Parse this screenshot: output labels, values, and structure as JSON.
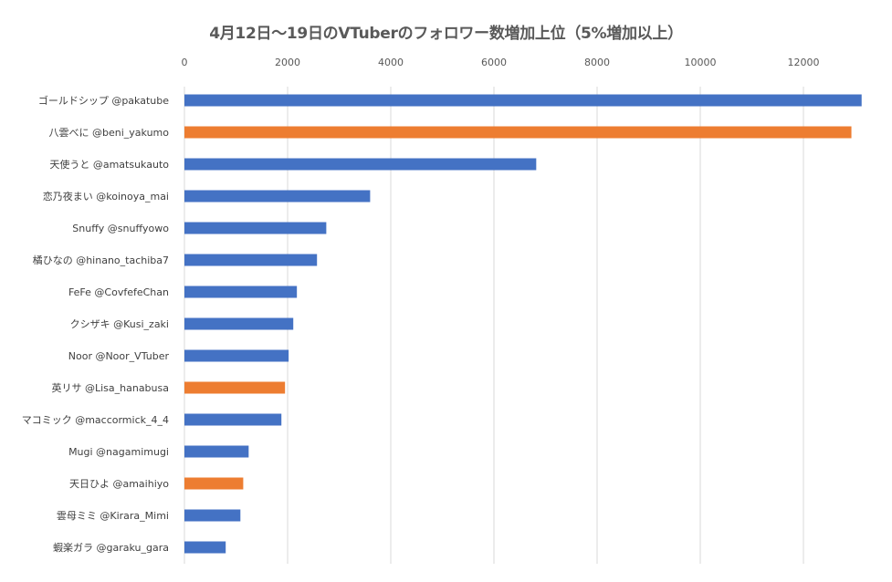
{
  "chart_data": {
    "type": "bar",
    "orientation": "horizontal",
    "title": "4月12日〜19日のVTuberのフォロワー数増加上位（5%増加以上）",
    "xlabel": "",
    "ylabel": "",
    "xlim": [
      0,
      13150
    ],
    "x_ticks": [
      0,
      2000,
      4000,
      6000,
      8000,
      10000,
      12000
    ],
    "x_tick_labels": [
      "0",
      "2000",
      "4000",
      "6000",
      "8000",
      "10000",
      "12000"
    ],
    "x_axis_position": "top",
    "grid": true,
    "legend": "none",
    "colors": {
      "blue": "#4472c4",
      "orange": "#ed7d31",
      "grid": "#d9d9d9",
      "text": "#595959"
    },
    "categories": [
      "ゴールドシップ @pakatube",
      "八雲べに @beni_yakumo",
      "天使うと @amatsukauto",
      "恋乃夜まい @koinoya_mai",
      "Snuffy @snuffyowo",
      "橘ひなの @hinano_tachiba7",
      "FeFe @CovfefeChan",
      "クシザキ @Kusi_zaki",
      "Noor @Noor_VTuber",
      "英リサ @Lisa_hanabusa",
      "マコミック @maccormick_4_4",
      "Mugi @nagamimugi",
      "天日ひよ @amaihiyo",
      "雲母ミミ @Kirara_Mimi",
      "蝦楽ガラ @garaku_gara"
    ],
    "values": [
      13128,
      12930,
      6820,
      3600,
      2750,
      2570,
      2180,
      2110,
      2020,
      1950,
      1880,
      1245,
      1140,
      1085,
      800
    ],
    "bar_colors": [
      "blue",
      "orange",
      "blue",
      "blue",
      "blue",
      "blue",
      "blue",
      "blue",
      "blue",
      "orange",
      "blue",
      "blue",
      "orange",
      "blue",
      "blue"
    ]
  }
}
